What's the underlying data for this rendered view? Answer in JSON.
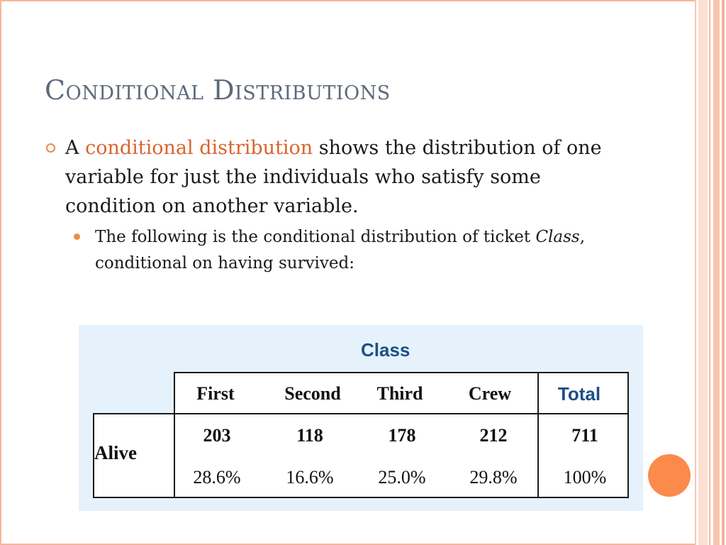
{
  "slide": {
    "title": "Conditional Distributions",
    "bullet1": {
      "prefix": "A ",
      "highlight": "conditional distribution",
      "rest": " shows the distribution of one variable for just the individuals who satisfy some condition on another variable."
    },
    "bullet2": {
      "italic": "Class",
      "before": "The following is the conditional distribution of ticket ",
      "after": ", conditional on having survived:"
    }
  },
  "table": {
    "caption": "Class",
    "columns": [
      "First",
      "Second",
      "Third",
      "Crew",
      "Total"
    ],
    "row_label": "Alive",
    "counts": [
      "203",
      "118",
      "178",
      "212",
      "711"
    ],
    "percents": [
      "28.6%",
      "16.6%",
      "25.0%",
      "29.8%",
      "100%"
    ]
  },
  "colors": {
    "accent": "#f08a4b",
    "highlight": "#d9642c",
    "title": "#5c6a7a",
    "table_bg": "#e6f2fb",
    "table_header_blue": "#1d4f86"
  },
  "icons": {
    "bullet1": "hollow-circle-bullet-icon",
    "bullet2": "filled-circle-bullet-icon",
    "decor": "orange-circle-icon"
  }
}
